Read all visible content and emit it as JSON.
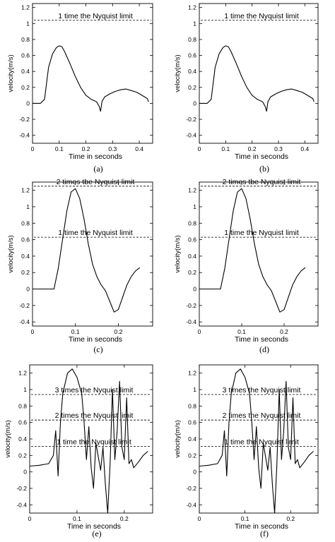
{
  "figure": {
    "panel_ids": [
      "a",
      "b",
      "c",
      "d",
      "e",
      "f"
    ]
  },
  "chart_data": [
    {
      "type": "line",
      "panel_id": "a",
      "caption": "(a)",
      "xlabel": "Time in seconds",
      "ylabel": "velocity(m/s)",
      "xlim": [
        0,
        0.45
      ],
      "ylim": [
        -0.5,
        1.25
      ],
      "xticks": [
        "0",
        "0.1",
        "0.2",
        "0.3",
        "0.4"
      ],
      "yticks": [
        "-0.4",
        "-0.2",
        "0",
        "0.2",
        "0.4",
        "0.6",
        "0.8",
        "1",
        "1.2"
      ],
      "grid": false,
      "nyquist_lines": [
        {
          "label": "1 time the Nyquist limit",
          "y": 1.04
        }
      ],
      "series": [
        {
          "x": [
            0,
            0.03,
            0.045,
            0.06,
            0.075,
            0.09,
            0.1,
            0.11,
            0.12,
            0.14,
            0.16,
            0.18,
            0.2,
            0.22,
            0.24,
            0.25,
            0.255,
            0.26,
            0.27,
            0.29,
            0.31,
            0.33,
            0.35,
            0.37,
            0.39,
            0.41,
            0.42,
            0.43,
            0.435
          ],
          "y": [
            0,
            0,
            0.05,
            0.45,
            0.62,
            0.7,
            0.72,
            0.71,
            0.65,
            0.5,
            0.34,
            0.2,
            0.1,
            0.05,
            0.02,
            -0.04,
            -0.1,
            0.02,
            0.08,
            0.12,
            0.15,
            0.17,
            0.18,
            0.16,
            0.14,
            0.1,
            0.08,
            0.06,
            0.02
          ]
        }
      ]
    },
    {
      "type": "line",
      "panel_id": "b",
      "caption": "(b)",
      "xlabel": "Time in seconds",
      "ylabel": "velocity(m/s)",
      "xlim": [
        0,
        0.45
      ],
      "ylim": [
        -0.5,
        1.25
      ],
      "xticks": [
        "0",
        "0.1",
        "0.2",
        "0.3",
        "0.4"
      ],
      "yticks": [
        "-0.4",
        "-0.2",
        "0",
        "0.2",
        "0.4",
        "0.6",
        "0.8",
        "1",
        "1.2"
      ],
      "grid": false,
      "nyquist_lines": [
        {
          "label": "1 time the Nyquist limit",
          "y": 1.04
        }
      ],
      "series": [
        {
          "x": [
            0,
            0.03,
            0.045,
            0.06,
            0.075,
            0.09,
            0.1,
            0.11,
            0.12,
            0.14,
            0.16,
            0.18,
            0.2,
            0.22,
            0.24,
            0.25,
            0.255,
            0.26,
            0.27,
            0.29,
            0.31,
            0.33,
            0.35,
            0.37,
            0.39,
            0.41,
            0.42,
            0.43,
            0.435
          ],
          "y": [
            0,
            0,
            0.05,
            0.45,
            0.62,
            0.7,
            0.72,
            0.71,
            0.65,
            0.5,
            0.34,
            0.2,
            0.1,
            0.05,
            0.02,
            -0.04,
            -0.1,
            0.02,
            0.08,
            0.12,
            0.15,
            0.17,
            0.18,
            0.16,
            0.14,
            0.1,
            0.08,
            0.06,
            0.02
          ]
        }
      ]
    },
    {
      "type": "line",
      "panel_id": "c",
      "caption": "(c)",
      "xlabel": "Time in seconds",
      "ylabel": "velocity(m/s)",
      "xlim": [
        0,
        0.28
      ],
      "ylim": [
        -0.45,
        1.3
      ],
      "xticks": [
        "0",
        "0.1",
        "0.2"
      ],
      "yticks": [
        "-0.4",
        "-0.2",
        "0",
        "0.2",
        "0.4",
        "0.6",
        "0.8",
        "1",
        "1.2"
      ],
      "grid": false,
      "nyquist_lines": [
        {
          "label": "2 times tbe Nyquist limit",
          "y": 1.25
        },
        {
          "label": "1 time the Nyquist limit",
          "y": 0.63
        }
      ],
      "series": [
        {
          "x": [
            0,
            0.05,
            0.06,
            0.07,
            0.08,
            0.09,
            0.1,
            0.11,
            0.12,
            0.13,
            0.14,
            0.15,
            0.16,
            0.17,
            0.18,
            0.19,
            0.2,
            0.21,
            0.22,
            0.23,
            0.24,
            0.25
          ],
          "y": [
            0,
            0,
            0.25,
            0.6,
            0.95,
            1.18,
            1.22,
            1.1,
            0.85,
            0.55,
            0.3,
            0.15,
            0.05,
            -0.02,
            -0.15,
            -0.28,
            -0.25,
            -0.1,
            0.05,
            0.15,
            0.22,
            0.26
          ]
        }
      ]
    },
    {
      "type": "line",
      "panel_id": "d",
      "caption": "(d)",
      "xlabel": "Time in seconds",
      "ylabel": "velocity(m/s)",
      "xlim": [
        0,
        0.28
      ],
      "ylim": [
        -0.45,
        1.3
      ],
      "xticks": [
        "0",
        "0.1",
        "0.2"
      ],
      "yticks": [
        "-0.4",
        "-0.2",
        "0",
        "0.2",
        "0.4",
        "0.6",
        "0.8",
        "1",
        "1.2"
      ],
      "grid": false,
      "nyquist_lines": [
        {
          "label": "2 times tbe Nyquist limit",
          "y": 1.25
        },
        {
          "label": "1 time the Nyquist limit",
          "y": 0.63
        }
      ],
      "series": [
        {
          "x": [
            0,
            0.05,
            0.06,
            0.07,
            0.08,
            0.09,
            0.1,
            0.11,
            0.12,
            0.13,
            0.14,
            0.15,
            0.16,
            0.17,
            0.18,
            0.19,
            0.2,
            0.21,
            0.22,
            0.23,
            0.24,
            0.25
          ],
          "y": [
            0,
            0,
            0.25,
            0.6,
            0.95,
            1.18,
            1.22,
            1.1,
            0.85,
            0.55,
            0.3,
            0.15,
            0.05,
            -0.02,
            -0.15,
            -0.28,
            -0.25,
            -0.1,
            0.05,
            0.15,
            0.22,
            0.26
          ]
        }
      ]
    },
    {
      "type": "line",
      "panel_id": "e",
      "caption": "(e)",
      "xlabel": "Time in seconds",
      "ylabel": "velocity(m/s)",
      "xlim": [
        0,
        0.26
      ],
      "ylim": [
        -0.5,
        1.3
      ],
      "xticks": [
        "0",
        "0.1",
        "0.2"
      ],
      "yticks": [
        "-0.4",
        "-0.2",
        "0",
        "0.2",
        "0.4",
        "0.6",
        "0.8",
        "1",
        "1.2"
      ],
      "grid": false,
      "nyquist_lines": [
        {
          "label": "3 times the Nyquist limit",
          "y": 0.94
        },
        {
          "label": "2 times the Nyquist limit",
          "y": 0.63
        },
        {
          "label": "1 time the Nyquist limit",
          "y": 0.31
        }
      ],
      "series": [
        {
          "x": [
            0,
            0.02,
            0.04,
            0.05,
            0.055,
            0.06,
            0.065,
            0.07,
            0.08,
            0.09,
            0.1,
            0.11,
            0.115,
            0.12,
            0.125,
            0.13,
            0.135,
            0.14,
            0.15,
            0.155,
            0.16,
            0.165,
            0.17,
            0.175,
            0.18,
            0.185,
            0.19,
            0.195,
            0.2,
            0.205,
            0.21,
            0.215,
            0.22,
            0.23,
            0.24,
            0.25
          ],
          "y": [
            0.07,
            0.08,
            0.1,
            0.2,
            0.5,
            -0.05,
            0.6,
            0.95,
            1.2,
            1.25,
            1.15,
            0.95,
            0.6,
            0.15,
            0.55,
            0.05,
            -0.2,
            0.35,
            0.02,
            0.3,
            -0.15,
            -0.5,
            0.1,
            1.0,
            0.15,
            0.5,
            1.1,
            0.3,
            0.15,
            0.9,
            0.1,
            0.15,
            0.05,
            0.12,
            0.2,
            0.25
          ]
        }
      ]
    },
    {
      "type": "line",
      "panel_id": "f",
      "caption": "(f)",
      "xlabel": "Time in seconds",
      "ylabel": "velocity(m/s)",
      "xlim": [
        0,
        0.26
      ],
      "ylim": [
        -0.5,
        1.3
      ],
      "xticks": [
        "0",
        "0.1",
        "0.2"
      ],
      "yticks": [
        "-0.4",
        "-0.2",
        "0",
        "0.2",
        "0.4",
        "0.6",
        "0.8",
        "1",
        "1.2"
      ],
      "grid": false,
      "nyquist_lines": [
        {
          "label": "3 times the Nyquist limit",
          "y": 0.94
        },
        {
          "label": "2 times the Nyquist limit",
          "y": 0.63
        },
        {
          "label": "1 time the Nyquist limit",
          "y": 0.31
        }
      ],
      "series": [
        {
          "x": [
            0,
            0.02,
            0.04,
            0.05,
            0.055,
            0.06,
            0.065,
            0.07,
            0.08,
            0.09,
            0.1,
            0.11,
            0.115,
            0.12,
            0.125,
            0.13,
            0.135,
            0.14,
            0.15,
            0.155,
            0.16,
            0.165,
            0.17,
            0.175,
            0.18,
            0.185,
            0.19,
            0.195,
            0.2,
            0.205,
            0.21,
            0.215,
            0.22,
            0.23,
            0.24,
            0.25
          ],
          "y": [
            0.07,
            0.08,
            0.1,
            0.2,
            0.5,
            -0.05,
            0.6,
            0.95,
            1.2,
            1.25,
            1.15,
            0.95,
            0.6,
            0.15,
            0.55,
            0.05,
            -0.2,
            0.35,
            0.02,
            0.3,
            -0.15,
            -0.5,
            0.1,
            1.0,
            0.15,
            0.5,
            1.1,
            0.3,
            0.15,
            0.9,
            0.1,
            0.15,
            0.05,
            0.12,
            0.2,
            0.25
          ]
        }
      ]
    }
  ]
}
